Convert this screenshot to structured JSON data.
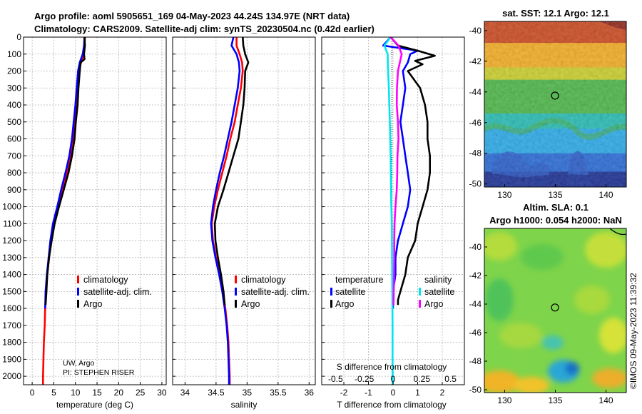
{
  "header": {
    "line1": "Argo profile: aoml 5905651_169 04-May-2023 44.24S 134.97E (NRT data)",
    "line2": "Climatology: CARS2009. Satellite-adj clim: synTS_20230504.nc (0.42d earlier)"
  },
  "credits": {
    "institution": "UW, Argo",
    "pi": "PI: STEPHEN RISER"
  },
  "timestamp": "©IMOS 09-May-2023 11:39:32",
  "colors": {
    "climatology": "#ff0000",
    "satellite": "#0000ff",
    "argo": "#000000",
    "s_satellite": "#00e5ee",
    "s_argo": "#ff00ff",
    "grid": "#b4b4b4"
  },
  "chart_data": [
    {
      "id": "temperature",
      "type": "line",
      "title": "",
      "xlabel": "temperature (deg C)",
      "ylabel": "",
      "xlim": [
        -2,
        31
      ],
      "ylim": [
        2050,
        0
      ],
      "xticks": [
        0,
        5,
        10,
        15,
        20,
        25,
        30
      ],
      "yticks": [
        0,
        100,
        200,
        300,
        400,
        500,
        600,
        700,
        800,
        900,
        1000,
        1100,
        1200,
        1300,
        1400,
        1500,
        1600,
        1700,
        1800,
        1900,
        2000
      ],
      "legend": [
        "climatology",
        "satellite-adj. clim.",
        "Argo"
      ],
      "series": [
        {
          "name": "climatology",
          "color": "#ff0000",
          "points": [
            [
              12.2,
              0
            ],
            [
              12.1,
              50
            ],
            [
              11.9,
              100
            ],
            [
              11.3,
              150
            ],
            [
              10.8,
              200
            ],
            [
              10.6,
              300
            ],
            [
              10.3,
              400
            ],
            [
              9.9,
              500
            ],
            [
              9.5,
              600
            ],
            [
              8.9,
              700
            ],
            [
              8.0,
              800
            ],
            [
              7.0,
              900
            ],
            [
              6.0,
              1000
            ],
            [
              5.0,
              1100
            ],
            [
              4.3,
              1200
            ],
            [
              3.9,
              1300
            ],
            [
              3.5,
              1400
            ],
            [
              3.2,
              1500
            ],
            [
              3.0,
              1600
            ],
            [
              2.9,
              1700
            ],
            [
              2.7,
              1800
            ],
            [
              2.6,
              1900
            ],
            [
              2.5,
              2000
            ],
            [
              2.5,
              2050
            ]
          ]
        },
        {
          "name": "satellite-adj. clim.",
          "color": "#0000ff",
          "points": [
            [
              12.1,
              0
            ],
            [
              12.0,
              50
            ],
            [
              11.7,
              100
            ],
            [
              11.0,
              150
            ],
            [
              10.6,
              200
            ],
            [
              10.3,
              300
            ],
            [
              10.0,
              400
            ],
            [
              9.6,
              500
            ],
            [
              9.2,
              600
            ],
            [
              8.6,
              700
            ],
            [
              7.7,
              800
            ],
            [
              6.7,
              900
            ],
            [
              5.8,
              1000
            ],
            [
              4.8,
              1100
            ],
            [
              4.2,
              1200
            ],
            [
              3.8,
              1300
            ],
            [
              3.4,
              1400
            ],
            [
              3.1,
              1500
            ],
            [
              3.0,
              1600
            ]
          ]
        },
        {
          "name": "Argo",
          "color": "#000000",
          "points": [
            [
              12.1,
              0
            ],
            [
              12.2,
              50
            ],
            [
              12.0,
              100
            ],
            [
              12.1,
              130
            ],
            [
              11.2,
              150
            ],
            [
              11.0,
              200
            ],
            [
              10.7,
              300
            ],
            [
              10.5,
              400
            ],
            [
              10.1,
              500
            ],
            [
              9.8,
              600
            ],
            [
              9.2,
              700
            ],
            [
              8.4,
              800
            ],
            [
              7.3,
              900
            ],
            [
              6.2,
              1000
            ],
            [
              5.2,
              1100
            ],
            [
              4.5,
              1200
            ],
            [
              3.9,
              1300
            ],
            [
              3.5,
              1400
            ],
            [
              3.3,
              1500
            ],
            [
              3.1,
              1580
            ]
          ]
        }
      ]
    },
    {
      "id": "salinity",
      "type": "line",
      "title": "",
      "xlabel": "salinity",
      "ylabel": "",
      "xlim": [
        33.8,
        36.1
      ],
      "ylim": [
        2050,
        0
      ],
      "xticks": [
        34,
        34.5,
        35,
        35.5,
        36
      ],
      "xticklabels": [
        "34",
        "34.5",
        "35",
        "35.5",
        "36"
      ],
      "legend": [
        "climatology",
        "satellite-adj. clim.",
        "Argo"
      ],
      "series": [
        {
          "name": "climatology",
          "color": "#ff0000",
          "points": [
            [
              34.83,
              0
            ],
            [
              34.83,
              50
            ],
            [
              34.88,
              100
            ],
            [
              34.92,
              150
            ],
            [
              34.93,
              200
            ],
            [
              34.9,
              300
            ],
            [
              34.85,
              400
            ],
            [
              34.8,
              500
            ],
            [
              34.73,
              600
            ],
            [
              34.67,
              700
            ],
            [
              34.6,
              800
            ],
            [
              34.53,
              900
            ],
            [
              34.47,
              1000
            ],
            [
              34.43,
              1100
            ],
            [
              34.45,
              1200
            ],
            [
              34.5,
              1300
            ],
            [
              34.56,
              1400
            ],
            [
              34.61,
              1500
            ],
            [
              34.65,
              1600
            ],
            [
              34.68,
              1700
            ],
            [
              34.7,
              1800
            ],
            [
              34.71,
              1900
            ],
            [
              34.72,
              2000
            ],
            [
              34.72,
              2050
            ]
          ]
        },
        {
          "name": "satellite-adj. clim.",
          "color": "#0000ff",
          "points": [
            [
              34.78,
              0
            ],
            [
              34.75,
              50
            ],
            [
              34.83,
              100
            ],
            [
              34.87,
              150
            ],
            [
              34.88,
              200
            ],
            [
              34.85,
              300
            ],
            [
              34.8,
              400
            ],
            [
              34.75,
              500
            ],
            [
              34.69,
              600
            ],
            [
              34.63,
              700
            ],
            [
              34.56,
              800
            ],
            [
              34.5,
              900
            ],
            [
              34.45,
              1000
            ],
            [
              34.42,
              1100
            ],
            [
              34.44,
              1200
            ],
            [
              34.49,
              1300
            ],
            [
              34.55,
              1400
            ],
            [
              34.6,
              1500
            ],
            [
              34.64,
              1600
            ],
            [
              34.67,
              1700
            ],
            [
              34.69,
              1800
            ],
            [
              34.7,
              1900
            ],
            [
              34.71,
              2000
            ],
            [
              34.71,
              2050
            ]
          ]
        },
        {
          "name": "Argo",
          "color": "#000000",
          "points": [
            [
              34.93,
              0
            ],
            [
              34.94,
              50
            ],
            [
              34.97,
              100
            ],
            [
              35.02,
              150
            ],
            [
              34.97,
              200
            ],
            [
              34.96,
              300
            ],
            [
              34.94,
              400
            ],
            [
              34.9,
              500
            ],
            [
              34.86,
              600
            ],
            [
              34.78,
              700
            ],
            [
              34.7,
              800
            ],
            [
              34.62,
              900
            ],
            [
              34.53,
              1000
            ],
            [
              34.48,
              1100
            ],
            [
              34.49,
              1200
            ],
            [
              34.53,
              1300
            ],
            [
              34.58,
              1400
            ],
            [
              34.62,
              1500
            ],
            [
              34.64,
              1580
            ]
          ]
        }
      ]
    },
    {
      "id": "difference",
      "type": "line",
      "title": "",
      "xlabel": "T difference from climatology",
      "xlabel_top": "S difference from climatology",
      "xlim": [
        -2.9,
        2.9
      ],
      "ylim": [
        2050,
        0
      ],
      "xticks": [
        -2,
        -1,
        0,
        1,
        2
      ],
      "xticks_top": [
        -0.5,
        -0.25,
        0,
        0.25,
        0.5
      ],
      "xticklabels_top": [
        "-0.5",
        "-0.25",
        "0",
        "0.25",
        "0.5"
      ],
      "legend_temperature_title": "temperature",
      "legend_salinity_title": "salinity",
      "legend_temperature": [
        "satellite",
        "Argo"
      ],
      "legend_salinity": [
        "satellite",
        "Argo"
      ],
      "series": [
        {
          "name": "T satellite",
          "color": "#0000ff",
          "points": [
            [
              -0.1,
              0
            ],
            [
              -0.4,
              50
            ],
            [
              1.0,
              80
            ],
            [
              0.7,
              100
            ],
            [
              0.6,
              150
            ],
            [
              0.4,
              200
            ],
            [
              0.5,
              300
            ],
            [
              0.4,
              400
            ],
            [
              0.3,
              500
            ],
            [
              0.4,
              600
            ],
            [
              0.5,
              700
            ],
            [
              0.6,
              800
            ],
            [
              0.7,
              900
            ],
            [
              0.6,
              1000
            ],
            [
              0.4,
              1100
            ],
            [
              0.2,
              1200
            ],
            [
              0.1,
              1300
            ],
            [
              0.1,
              1400
            ],
            [
              0.0,
              1500
            ],
            [
              0.0,
              1600
            ]
          ]
        },
        {
          "name": "T Argo",
          "color": "#000000",
          "points": [
            [
              -0.1,
              0
            ],
            [
              0.2,
              50
            ],
            [
              1.0,
              80
            ],
            [
              1.7,
              110
            ],
            [
              0.9,
              140
            ],
            [
              1.2,
              160
            ],
            [
              0.6,
              200
            ],
            [
              1.1,
              300
            ],
            [
              1.3,
              400
            ],
            [
              1.4,
              500
            ],
            [
              1.4,
              600
            ],
            [
              1.5,
              700
            ],
            [
              1.5,
              800
            ],
            [
              1.4,
              900
            ],
            [
              1.2,
              1000
            ],
            [
              1.0,
              1100
            ],
            [
              0.9,
              1200
            ],
            [
              0.6,
              1300
            ],
            [
              0.5,
              1400
            ],
            [
              0.3,
              1500
            ],
            [
              0.2,
              1550
            ],
            [
              0.2,
              1580
            ]
          ]
        },
        {
          "name": "S satellite",
          "color": "#00e5ee",
          "points": [
            [
              -0.1,
              0
            ],
            [
              -0.35,
              50
            ],
            [
              -0.22,
              100
            ],
            [
              -0.2,
              200
            ],
            [
              -0.17,
              300
            ],
            [
              -0.15,
              400
            ],
            [
              -0.13,
              500
            ],
            [
              -0.1,
              700
            ],
            [
              -0.08,
              900
            ],
            [
              -0.07,
              1000
            ],
            [
              -0.05,
              1100
            ],
            [
              -0.04,
              1300
            ],
            [
              -0.03,
              1500
            ],
            [
              -0.02,
              1700
            ],
            [
              -0.02,
              1900
            ],
            [
              -0.01,
              2050
            ]
          ]
        },
        {
          "name": "S Argo",
          "color": "#ff00ff",
          "points": [
            [
              -0.1,
              0
            ],
            [
              0.22,
              50
            ],
            [
              0.35,
              100
            ],
            [
              0.2,
              200
            ],
            [
              0.16,
              300
            ],
            [
              0.15,
              400
            ],
            [
              0.2,
              500
            ],
            [
              0.22,
              600
            ],
            [
              0.18,
              700
            ],
            [
              0.17,
              800
            ],
            [
              0.15,
              900
            ],
            [
              0.1,
              1000
            ],
            [
              0.06,
              1100
            ],
            [
              0.05,
              1200
            ],
            [
              0.05,
              1300
            ],
            [
              0.04,
              1400
            ],
            [
              0.03,
              1500
            ],
            [
              0.02,
              1580
            ]
          ]
        }
      ]
    },
    {
      "id": "sst_map",
      "type": "heatmap",
      "title": "sat. SST: 12.1 Argo: 12.1",
      "xlim": [
        128,
        142
      ],
      "ylim": [
        -50.2,
        -39.4
      ],
      "xticks": [
        130,
        135,
        140
      ],
      "yticks": [
        -40,
        -42,
        -44,
        -46,
        -48,
        -50
      ],
      "marker": {
        "lon": 134.97,
        "lat": -44.24
      },
      "bands": [
        {
          "lat_top": -39.4,
          "lat_bottom": -40.8,
          "color": "#c83c10"
        },
        {
          "lat_top": -40.8,
          "lat_bottom": -42.4,
          "color": "#f3a712"
        },
        {
          "lat_top": -42.4,
          "lat_bottom": -43.2,
          "color": "#c8cc1c"
        },
        {
          "lat_top": -43.2,
          "lat_bottom": -45.4,
          "color": "#40b23a"
        },
        {
          "lat_top": -45.4,
          "lat_bottom": -46.4,
          "color": "#17b7ae"
        },
        {
          "lat_top": -46.4,
          "lat_bottom": -48.0,
          "color": "#1aa4e6"
        },
        {
          "lat_top": -48.0,
          "lat_bottom": -49.2,
          "color": "#1860d4"
        },
        {
          "lat_top": -49.2,
          "lat_bottom": -50.2,
          "color": "#0a1f8a"
        }
      ]
    },
    {
      "id": "sla_map",
      "type": "heatmap",
      "title": "Altim. SLA: 0.1",
      "subtitle": "Argo h1000: 0.054 h2000: NaN",
      "xlim": [
        128,
        142
      ],
      "ylim": [
        -50.2,
        -38.7
      ],
      "xticks": [
        130,
        135,
        140
      ],
      "yticks": [
        -40,
        -42,
        -44,
        -46,
        -48,
        -50
      ],
      "marker": {
        "lon": 134.97,
        "lat": -44.24
      },
      "background_color": "#7ed44a"
    }
  ]
}
